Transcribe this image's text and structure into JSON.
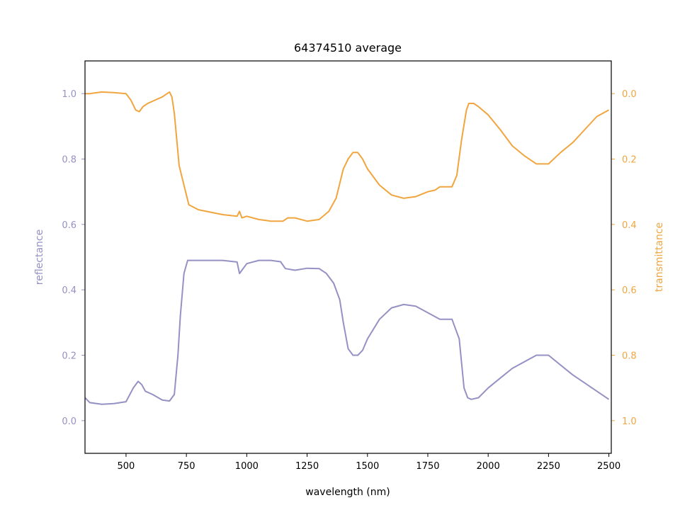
{
  "chart_data": {
    "type": "line",
    "title": "64374510 average",
    "xlabel": "wavelength (nm)",
    "ylabel_left": "reflectance",
    "ylabel_right": "transmittance",
    "xlim": [
      330,
      2510
    ],
    "ylim_left": [
      -0.1,
      1.1
    ],
    "ylim_right": [
      1.1,
      -0.1
    ],
    "x_ticks": [
      500,
      750,
      1000,
      1250,
      1500,
      1750,
      2000,
      2250,
      2500
    ],
    "y_ticks_left": [
      0.0,
      0.2,
      0.4,
      0.6,
      0.8,
      1.0
    ],
    "y_ticks_right": [
      0.0,
      0.2,
      0.4,
      0.6,
      0.8,
      1.0
    ],
    "colors": {
      "reflectance": "#9591c4",
      "transmittance": "#f0a53f"
    },
    "series": [
      {
        "name": "reflectance",
        "axis": "left",
        "x": [
          330,
          350,
          400,
          450,
          500,
          530,
          550,
          565,
          580,
          610,
          650,
          680,
          700,
          715,
          725,
          740,
          755,
          770,
          800,
          900,
          960,
          970,
          980,
          1000,
          1050,
          1100,
          1140,
          1160,
          1200,
          1250,
          1300,
          1330,
          1360,
          1385,
          1400,
          1420,
          1440,
          1460,
          1480,
          1500,
          1550,
          1600,
          1650,
          1700,
          1750,
          1800,
          1850,
          1880,
          1900,
          1915,
          1930,
          1960,
          2000,
          2050,
          2100,
          2150,
          2200,
          2250,
          2300,
          2350,
          2400,
          2450,
          2500
        ],
        "y": [
          0.07,
          0.055,
          0.05,
          0.052,
          0.058,
          0.1,
          0.12,
          0.11,
          0.09,
          0.08,
          0.063,
          0.06,
          0.08,
          0.2,
          0.32,
          0.45,
          0.49,
          0.49,
          0.49,
          0.49,
          0.485,
          0.45,
          0.46,
          0.48,
          0.49,
          0.49,
          0.486,
          0.465,
          0.46,
          0.466,
          0.465,
          0.45,
          0.42,
          0.37,
          0.3,
          0.22,
          0.2,
          0.2,
          0.215,
          0.25,
          0.31,
          0.345,
          0.355,
          0.35,
          0.33,
          0.31,
          0.31,
          0.25,
          0.1,
          0.07,
          0.065,
          0.07,
          0.1,
          0.13,
          0.16,
          0.18,
          0.2,
          0.2,
          0.17,
          0.14,
          0.115,
          0.09,
          0.065
        ]
      },
      {
        "name": "transmittance",
        "axis": "right",
        "x": [
          330,
          350,
          400,
          450,
          500,
          520,
          540,
          555,
          570,
          590,
          620,
          650,
          680,
          690,
          700,
          720,
          740,
          760,
          800,
          900,
          960,
          970,
          980,
          1000,
          1050,
          1100,
          1130,
          1150,
          1170,
          1200,
          1250,
          1300,
          1340,
          1370,
          1400,
          1420,
          1440,
          1460,
          1480,
          1500,
          1550,
          1600,
          1650,
          1700,
          1750,
          1780,
          1800,
          1850,
          1870,
          1890,
          1910,
          1920,
          1940,
          1960,
          2000,
          2050,
          2100,
          2150,
          2200,
          2250,
          2300,
          2350,
          2400,
          2450,
          2500
        ],
        "y": [
          0.0,
          0.0,
          -0.005,
          -0.003,
          0.0,
          0.02,
          0.05,
          0.055,
          0.04,
          0.03,
          0.02,
          0.01,
          -0.005,
          0.01,
          0.06,
          0.22,
          0.28,
          0.34,
          0.355,
          0.37,
          0.375,
          0.36,
          0.38,
          0.375,
          0.385,
          0.39,
          0.39,
          0.39,
          0.38,
          0.38,
          0.39,
          0.385,
          0.36,
          0.32,
          0.23,
          0.2,
          0.18,
          0.18,
          0.2,
          0.23,
          0.28,
          0.31,
          0.32,
          0.315,
          0.3,
          0.295,
          0.285,
          0.285,
          0.25,
          0.14,
          0.05,
          0.03,
          0.03,
          0.04,
          0.065,
          0.11,
          0.16,
          0.19,
          0.215,
          0.215,
          0.18,
          0.15,
          0.11,
          0.07,
          0.05
        ]
      }
    ]
  }
}
